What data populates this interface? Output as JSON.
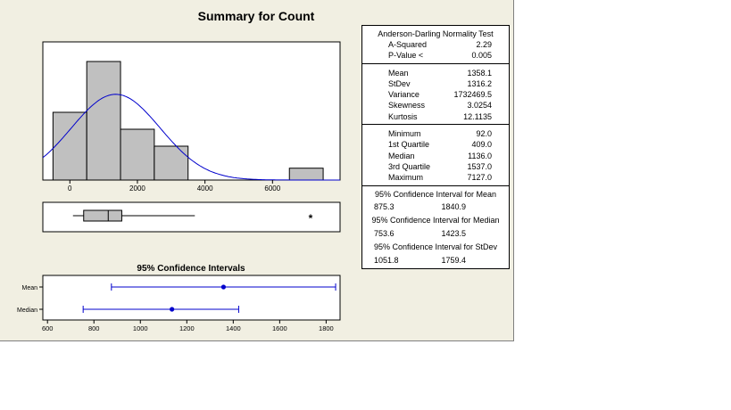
{
  "title": "Summary for Count",
  "colors": {
    "window_bg": "#f1efe2",
    "bar_fill": "#c0c0c0",
    "curve": "#0000cc",
    "ci": "#0000cc"
  },
  "chart_data": [
    {
      "type": "bar",
      "title": "",
      "bins": [
        {
          "from": -500,
          "to": 500,
          "count": 4
        },
        {
          "from": 500,
          "to": 1500,
          "count": 7
        },
        {
          "from": 1500,
          "to": 2500,
          "count": 3
        },
        {
          "from": 2500,
          "to": 3500,
          "count": 2
        },
        {
          "from": 3500,
          "to": 4500,
          "count": 0
        },
        {
          "from": 4500,
          "to": 5500,
          "count": 0
        },
        {
          "from": 5500,
          "to": 6500,
          "count": 0
        },
        {
          "from": 6500,
          "to": 7500,
          "count": 0.7
        }
      ],
      "normal_fit": {
        "mean": 1358.1,
        "stdev": 1316.2
      },
      "xlim": [
        -800,
        8000
      ],
      "xticks": [
        "0",
        "2000",
        "4000",
        "6000"
      ]
    },
    {
      "type": "scatter",
      "title": "",
      "boxplot": {
        "whisker_low": 92.0,
        "q1": 409.0,
        "median": 1136.0,
        "q3": 1537.0,
        "whisker_high": 3700,
        "outlier": 7127.0
      },
      "outlier_symbol": "*"
    },
    {
      "type": "scatter",
      "title": "95% Confidence Intervals",
      "rows": [
        {
          "label": "Mean",
          "center": 1358.1,
          "low": 875.3,
          "high": 1840.9
        },
        {
          "label": "Median",
          "center": 1136.0,
          "low": 753.6,
          "high": 1423.5
        }
      ],
      "xlim": [
        580,
        1860
      ],
      "xticks": [
        "600",
        "800",
        "1000",
        "1200",
        "1400",
        "1600",
        "1800"
      ]
    }
  ],
  "stats": {
    "ad_title": "Anderson-Darling Normality Test",
    "ad_rows": [
      {
        "label": "A-Squared",
        "value": "2.29"
      },
      {
        "label": "P-Value <",
        "value": "0.005"
      }
    ],
    "moment_rows": [
      {
        "label": "Mean",
        "value": "1358.1"
      },
      {
        "label": "StDev",
        "value": "1316.2"
      },
      {
        "label": "Variance",
        "value": "1732469.5"
      },
      {
        "label": "Skewness",
        "value": "3.0254"
      },
      {
        "label": "Kurtosis",
        "value": "12.1135"
      }
    ],
    "quantile_rows": [
      {
        "label": "Minimum",
        "value": "92.0"
      },
      {
        "label": "1st Quartile",
        "value": "409.0"
      },
      {
        "label": "Median",
        "value": "1136.0"
      },
      {
        "label": "3rd Quartile",
        "value": "1537.0"
      },
      {
        "label": "Maximum",
        "value": "7127.0"
      }
    ],
    "ci": [
      {
        "title": "95% Confidence Interval for Mean",
        "low": "875.3",
        "high": "1840.9"
      },
      {
        "title": "95% Confidence Interval for Median",
        "low": "753.6",
        "high": "1423.5"
      },
      {
        "title": "95% Confidence Interval for StDev",
        "low": "1051.8",
        "high": "1759.4"
      }
    ]
  }
}
